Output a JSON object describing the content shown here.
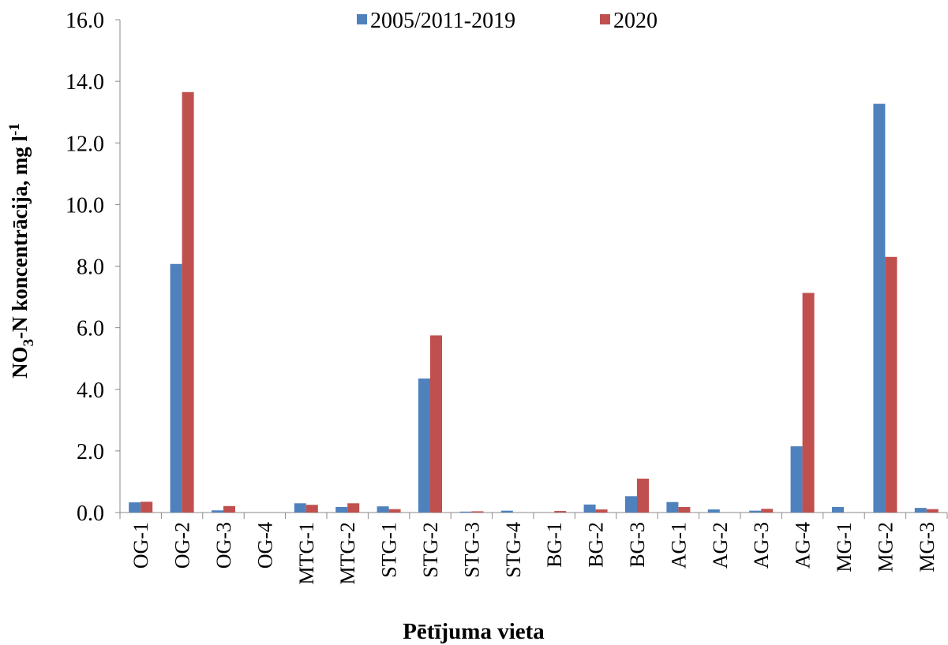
{
  "chart_data": {
    "type": "bar",
    "x_label": "Pētījuma vieta",
    "y_label": [
      "NO",
      "3",
      "-N koncentrācija, mg l",
      "-1"
    ],
    "categories": [
      "OG-1",
      "OG-2",
      "OG-3",
      "OG-4",
      "MTG-1",
      "MTG-2",
      "STG-1",
      "STG-2",
      "STG-3",
      "STG-4",
      "BG-1",
      "BG-2",
      "BG-3",
      "AG-1",
      "AG-2",
      "AG-3",
      "AG-4",
      "MG-1",
      "MG-2",
      "MG-3"
    ],
    "series": [
      {
        "name": "2005/2011-2019",
        "color": "#4f81bd",
        "values": [
          0.33,
          8.07,
          0.07,
          0,
          0.3,
          0.18,
          0.2,
          4.35,
          0.03,
          0.06,
          0,
          0.26,
          0.53,
          0.34,
          0.1,
          0.06,
          2.15,
          0.18,
          13.27,
          0.15
        ]
      },
      {
        "name": "2020",
        "color": "#c0504d",
        "values": [
          0.35,
          13.65,
          0.21,
          0,
          0.25,
          0.3,
          0.11,
          5.75,
          0.04,
          0,
          0.05,
          0.1,
          1.1,
          0.18,
          0,
          0.12,
          7.13,
          0,
          8.3,
          0.11
        ]
      }
    ],
    "ylim": [
      0,
      16
    ],
    "yticks": [
      {
        "value": 0,
        "label": "0.0"
      },
      {
        "value": 2,
        "label": "2.0"
      },
      {
        "value": 4,
        "label": "4.0"
      },
      {
        "value": 6,
        "label": "6.0"
      },
      {
        "value": 8,
        "label": "8.0"
      },
      {
        "value": 10,
        "label": "10.0"
      },
      {
        "value": 12,
        "label": "12.0"
      },
      {
        "value": 14,
        "label": "14.0"
      },
      {
        "value": 16,
        "label": "16.0"
      }
    ],
    "legend": "top"
  }
}
